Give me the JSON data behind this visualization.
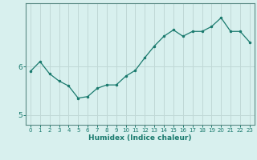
{
  "x": [
    0,
    1,
    2,
    3,
    4,
    5,
    6,
    7,
    8,
    9,
    10,
    11,
    12,
    13,
    14,
    15,
    16,
    17,
    18,
    19,
    20,
    21,
    22,
    23
  ],
  "y": [
    5.9,
    6.1,
    5.85,
    5.7,
    5.6,
    5.35,
    5.38,
    5.55,
    5.62,
    5.62,
    5.8,
    5.92,
    6.18,
    6.42,
    6.62,
    6.75,
    6.62,
    6.72,
    6.72,
    6.82,
    7.0,
    6.72,
    6.72,
    6.5
  ],
  "title": "",
  "xlabel": "Humidex (Indice chaleur)",
  "ylabel": "",
  "ylim": [
    4.8,
    7.3
  ],
  "xlim": [
    -0.5,
    23.5
  ],
  "yticks": [
    5,
    6
  ],
  "xticks": [
    0,
    1,
    2,
    3,
    4,
    5,
    6,
    7,
    8,
    9,
    10,
    11,
    12,
    13,
    14,
    15,
    16,
    17,
    18,
    19,
    20,
    21,
    22,
    23
  ],
  "line_color": "#1a7a6e",
  "marker_color": "#1a7a6e",
  "bg_color": "#d8f0ee",
  "grid_color": "#c0d8d6",
  "axis_color": "#5a8a84",
  "xlabel_color": "#1a7a6e",
  "tick_color": "#1a7a6e"
}
